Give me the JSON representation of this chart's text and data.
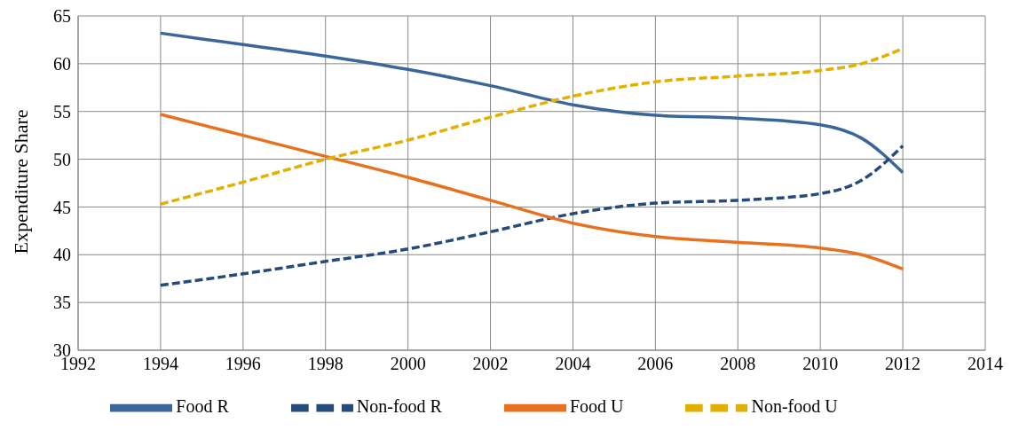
{
  "chart_data": {
    "type": "line",
    "ylabel": "Expenditure Share",
    "x": [
      1994,
      1996,
      1998,
      2000,
      2002,
      2004,
      2006,
      2008,
      2010,
      2011,
      2012
    ],
    "series": [
      {
        "name": "Food  R",
        "color": "#3a6699",
        "line_style": "solid",
        "values": [
          63.2,
          62.0,
          60.8,
          59.4,
          57.7,
          55.7,
          54.6,
          54.3,
          53.6,
          52.2,
          48.6
        ]
      },
      {
        "name": "Non-food  R",
        "color": "#254b7a",
        "line_style": "dashed",
        "values": [
          36.8,
          38.0,
          39.3,
          40.6,
          42.4,
          44.3,
          45.4,
          45.7,
          46.4,
          47.8,
          51.4
        ]
      },
      {
        "name": "Food  U",
        "color": "#e8711f",
        "line_style": "solid",
        "values": [
          54.7,
          52.5,
          50.3,
          48.1,
          45.7,
          43.3,
          41.9,
          41.3,
          40.7,
          40.0,
          38.5
        ]
      },
      {
        "name": "Non-food  U",
        "color": "#e1b000",
        "line_style": "dashed",
        "values": [
          45.3,
          47.6,
          50.0,
          52.0,
          54.4,
          56.6,
          58.1,
          58.7,
          59.3,
          60.0,
          61.6
        ]
      }
    ],
    "xlim": [
      1992,
      2014
    ],
    "xticks": [
      1992,
      1994,
      1996,
      1998,
      2000,
      2002,
      2004,
      2006,
      2008,
      2010,
      2012,
      2014
    ],
    "ylim": [
      30,
      65
    ],
    "yticks": [
      30,
      35,
      40,
      45,
      50,
      55,
      60,
      65
    ],
    "grid": true,
    "legend": "bottom",
    "marker": "none"
  }
}
